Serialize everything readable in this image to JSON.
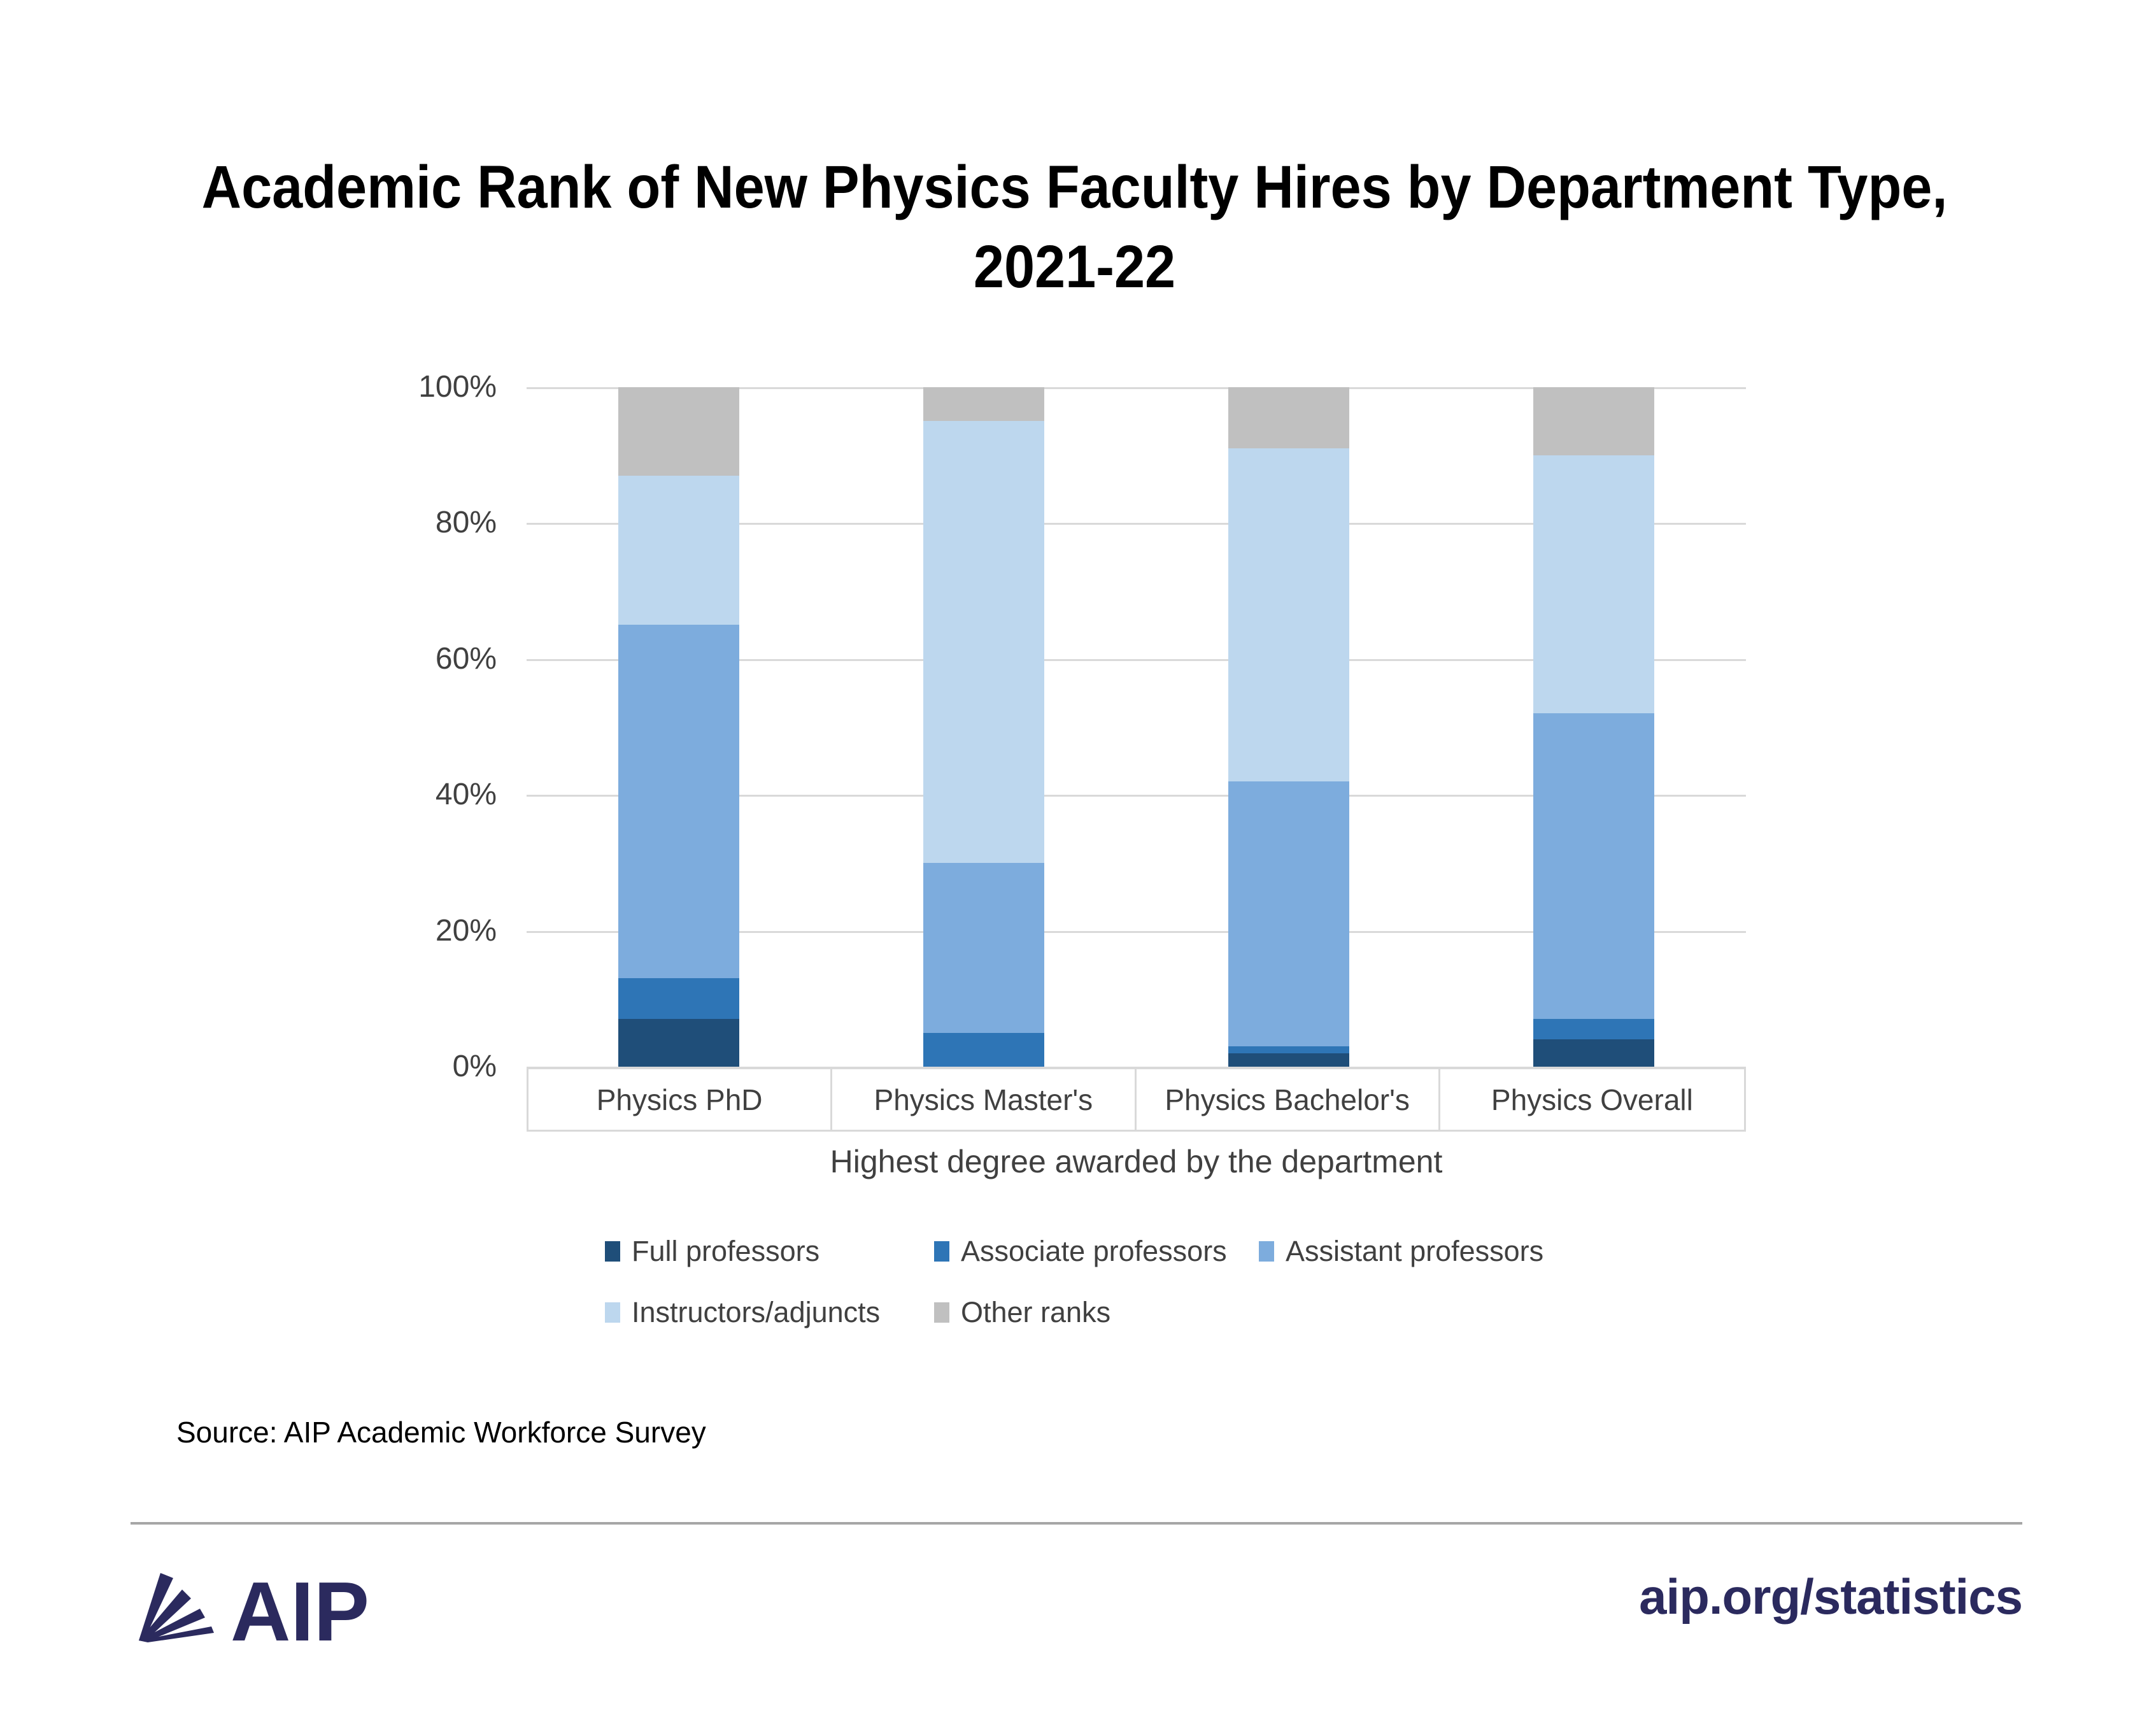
{
  "title": {
    "line1": "Academic Rank of New Physics Faculty Hires by Department Type,",
    "line2": "2021-22"
  },
  "chart_data": {
    "type": "bar",
    "stacked": true,
    "orientation": "vertical",
    "title": "Academic Rank of New Physics Faculty Hires by Department Type, 2021-22",
    "categories": [
      "Physics PhD",
      "Physics Master's",
      "Physics Bachelor's",
      "Physics Overall"
    ],
    "series": [
      {
        "name": "Full professors",
        "color": "#1F4E79",
        "values": [
          7,
          0,
          2,
          4
        ]
      },
      {
        "name": "Associate professors",
        "color": "#2E75B6",
        "values": [
          6,
          5,
          1,
          3
        ]
      },
      {
        "name": "Assistant professors",
        "color": "#7DACDD",
        "values": [
          52,
          25,
          39,
          45
        ]
      },
      {
        "name": "Instructors/adjuncts",
        "color": "#BDD7EE",
        "values": [
          22,
          65,
          49,
          38
        ]
      },
      {
        "name": "Other ranks",
        "color": "#C0C0C0",
        "values": [
          13,
          5,
          9,
          10
        ]
      }
    ],
    "xlabel": "Highest degree awarded by the department",
    "ylabel": "",
    "ylim": [
      0,
      100
    ],
    "yticks_top_down": [
      "100%",
      "80%",
      "60%",
      "40%",
      "20%",
      "0%"
    ],
    "grid": true,
    "gridline_color": "#D9D9D9",
    "legend_position": "bottom",
    "units": "percent"
  },
  "legend": {
    "row1": [
      "Full professors",
      "Associate professors",
      "Assistant professors"
    ],
    "row2": [
      "Instructors/adjuncts",
      "Other ranks"
    ]
  },
  "source": {
    "text": "Source: AIP Academic Workforce Survey"
  },
  "footer": {
    "logo_text": "AIP",
    "url": "aip.org/statistics",
    "brand_color": "#2B2A5E"
  }
}
